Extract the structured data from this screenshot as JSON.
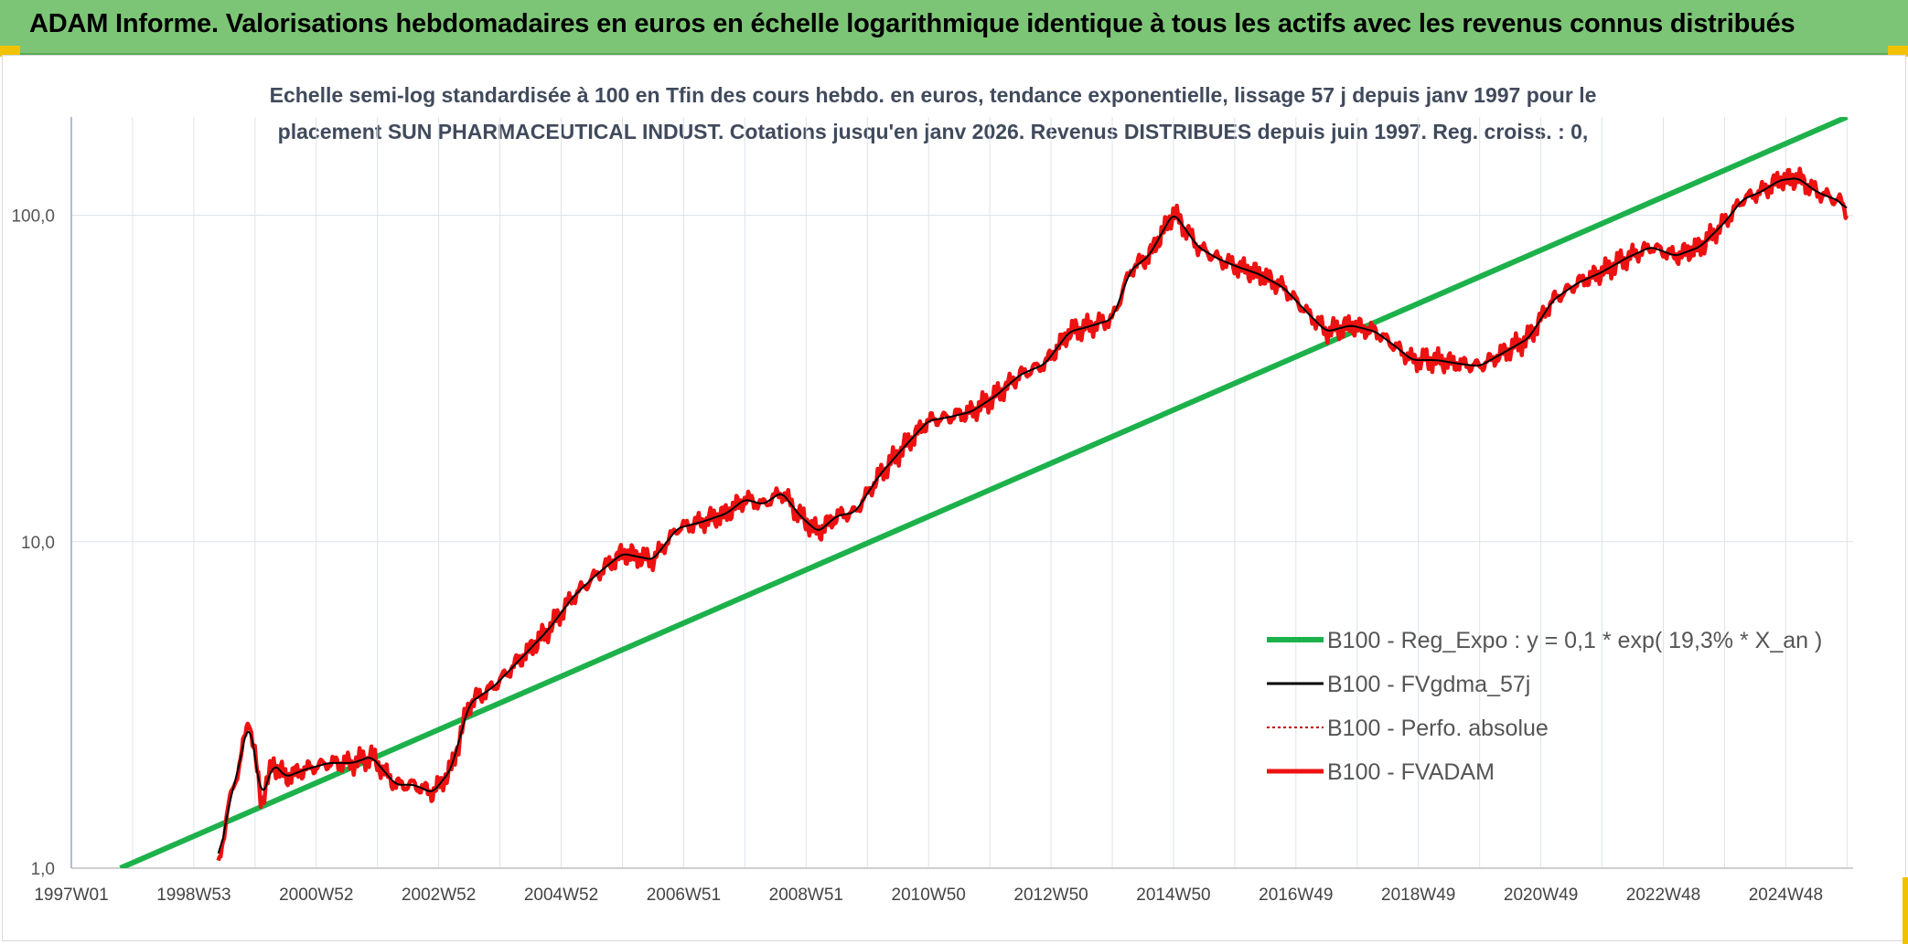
{
  "header": {
    "title": "ADAM Informe. Valorisations hebdomadaires en euros en échelle logarithmique identique à tous les actifs avec les revenus connus distribués"
  },
  "colors": {
    "banner": "#7cc576",
    "regression": "#1db14b",
    "smoothed": "#000000",
    "absolute": "#c00000",
    "fvadam": "#ee1111",
    "accent": "#f2c200"
  },
  "chart_data": {
    "type": "line",
    "subtitle_line1": "Echelle semi-log standardisée à 100 en Tfin des cours hebdo. en euros, tendance exponentielle, lissage 57 j depuis janv 1997 pour le",
    "subtitle_line2": "placement SUN PHARMACEUTICAL INDUST. Cotations jusqu'en janv 2026. Revenus DISTRIBUES depuis juin 1997. Reg. croiss. : 0,",
    "y_scale": "log",
    "ylim": [
      1,
      200
    ],
    "y_ticks": [
      "1,0",
      "10,0",
      "100,0"
    ],
    "y_tick_values": [
      1,
      10,
      100
    ],
    "x_ticks": [
      "1997W01",
      "1998W53",
      "2000W52",
      "2002W52",
      "2004W52",
      "2006W51",
      "2008W51",
      "2010W50",
      "2012W50",
      "2014W50",
      "2016W49",
      "2018W49",
      "2020W49",
      "2022W48",
      "2024W48"
    ],
    "x_tick_years": [
      1997.0,
      1999.0,
      2001.0,
      2003.0,
      2005.0,
      2007.0,
      2009.0,
      2011.0,
      2013.0,
      2015.0,
      2017.0,
      2019.0,
      2021.0,
      2023.0,
      2025.0
    ],
    "xlim_years": [
      1997.0,
      2026.1
    ],
    "grid": true,
    "legend_position": "bottom-right",
    "legend": [
      "B100 - Reg_Expo : y = 0,1 * exp( 19,3% *  X_an )",
      "B100 - FVgdma_57j",
      "B100 - Perfo. absolue",
      "B100 - FVADAM"
    ],
    "series": [
      {
        "name": "B100 - Reg_Expo : y = 0,1 * exp( 19,3% *  X_an )",
        "style": "thick-green",
        "x": [
          1997.8,
          2026.0
        ],
        "y": [
          1.0,
          200
        ]
      },
      {
        "name": "B100 - FVADAM",
        "style": "thick-red-noisy",
        "x": [
          1999.4,
          1999.55,
          1999.75,
          1999.9,
          2000.0,
          2000.1,
          2000.3,
          2000.5,
          2000.8,
          2001.2,
          2001.6,
          2001.9,
          2002.3,
          2002.6,
          2002.9,
          2003.2,
          2003.5,
          2003.9,
          2004.4,
          2004.8,
          2005.2,
          2005.6,
          2006.0,
          2006.5,
          2006.9,
          2007.3,
          2007.7,
          2008.0,
          2008.3,
          2008.6,
          2008.9,
          2009.2,
          2009.5,
          2009.8,
          2010.2,
          2010.6,
          2011.0,
          2011.3,
          2011.7,
          2012.1,
          2012.5,
          2012.9,
          2013.3,
          2013.6,
          2014.0,
          2014.3,
          2014.6,
          2015.0,
          2015.4,
          2015.7,
          2016.0,
          2016.4,
          2016.8,
          2017.2,
          2017.5,
          2017.9,
          2018.3,
          2018.6,
          2018.9,
          2019.3,
          2019.7,
          2020.0,
          2020.4,
          2020.8,
          2021.2,
          2021.6,
          2022.0,
          2022.4,
          2022.8,
          2023.2,
          2023.6,
          2024.0,
          2024.3,
          2024.6,
          2024.9,
          2025.2,
          2025.5,
          2025.9,
          2026.0
        ],
        "y": [
          1.0,
          1.5,
          2.1,
          2.9,
          2.2,
          1.6,
          2.1,
          1.9,
          2.0,
          2.1,
          2.1,
          2.2,
          1.8,
          1.8,
          1.7,
          2.0,
          3.2,
          3.6,
          4.5,
          5.4,
          6.8,
          8.0,
          9.2,
          8.8,
          11.0,
          11.5,
          12.2,
          13.5,
          13.0,
          14.2,
          12.0,
          10.7,
          12.0,
          12.3,
          16.0,
          19.5,
          23.5,
          24.0,
          25.0,
          28.0,
          32.5,
          35.0,
          44.0,
          45.5,
          48.0,
          68.0,
          75.0,
          102.0,
          80.0,
          74.0,
          70.0,
          66.0,
          60.0,
          50.0,
          44.0,
          46.0,
          44.0,
          40.0,
          36.0,
          36.0,
          35.0,
          34.5,
          38.0,
          42.0,
          55.0,
          62.0,
          67.0,
          74.0,
          80.0,
          75.0,
          80.0,
          95.0,
          112.0,
          118.0,
          128.0,
          130.0,
          118.0,
          110.0,
          102.0
        ]
      },
      {
        "name": "B100 - FVgdma_57j",
        "style": "thin-black-smooth",
        "derived_from": "B100 - FVADAM"
      }
    ]
  }
}
